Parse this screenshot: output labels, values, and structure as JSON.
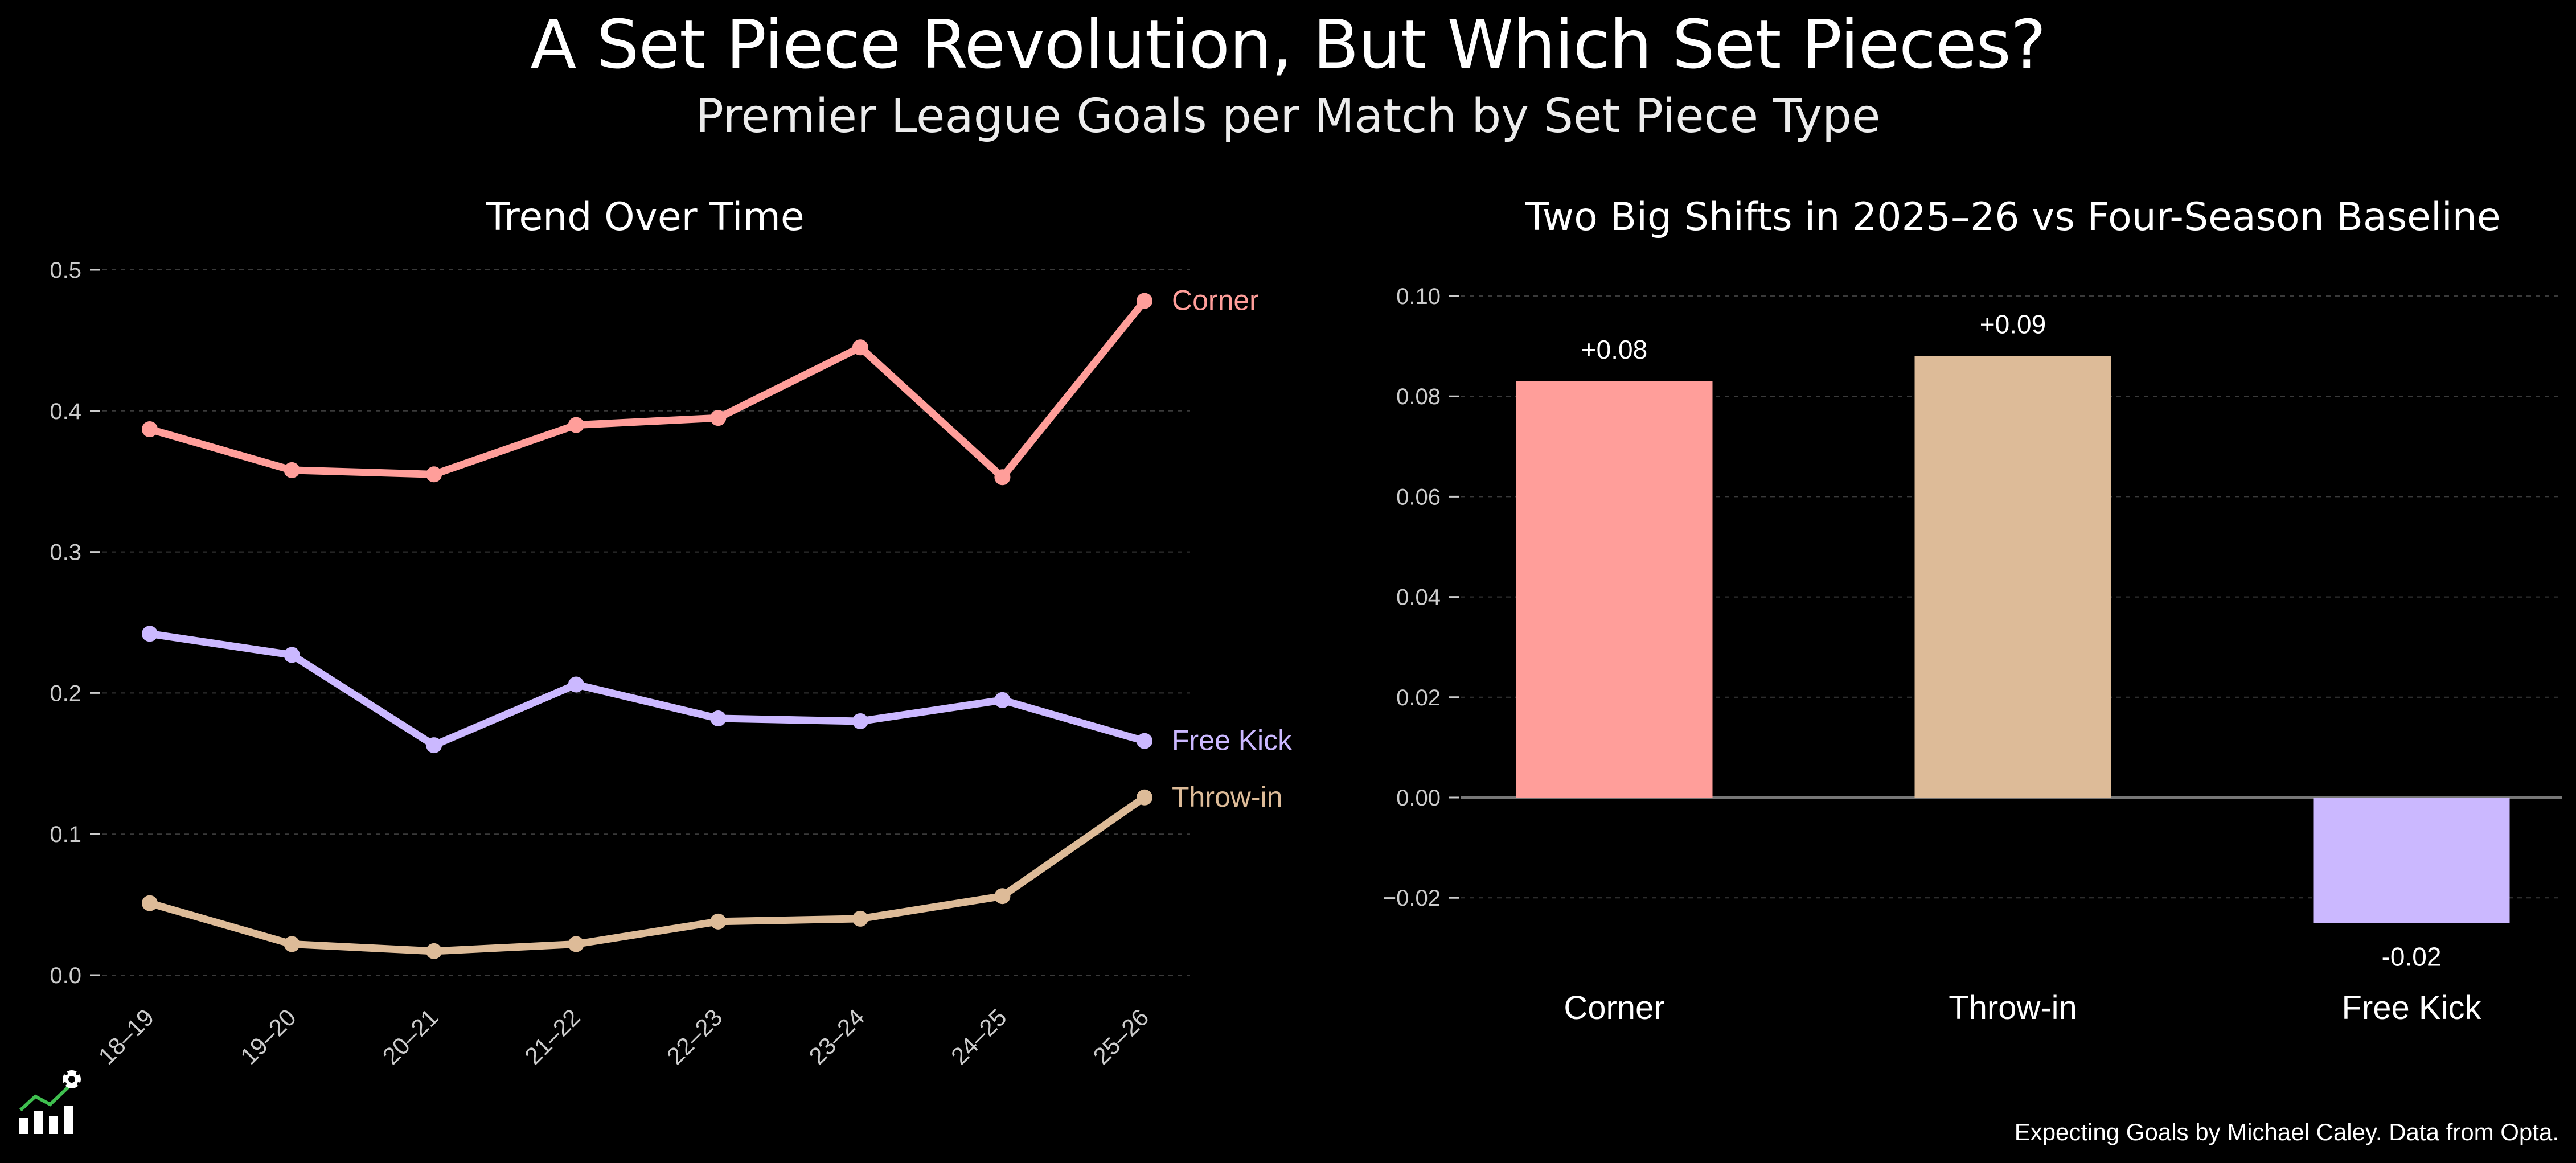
{
  "header": {
    "title": "A Set Piece Revolution, But Which Set Pieces?",
    "subtitle": "Premier League Goals per Match by Set Piece Type"
  },
  "colors": {
    "Corner": "#ff9e9a",
    "Free Kick": "#cbb8ff",
    "Throw-in": "#ddbb98",
    "grid": "#3a3a3a",
    "tick": "#cccccc",
    "zero_line": "#777777"
  },
  "chart_data": [
    {
      "type": "line",
      "title": "Trend Over Time",
      "xlabel": "",
      "ylabel": "",
      "x": [
        "18–19",
        "19–20",
        "20–21",
        "21–22",
        "22–23",
        "23–24",
        "24–25",
        "25–26"
      ],
      "ylim": [
        0,
        0.5
      ],
      "yticks": [
        0.0,
        0.1,
        0.2,
        0.3,
        0.4,
        0.5
      ],
      "ytick_labels": [
        "0.0",
        "0.1",
        "0.2",
        "0.3",
        "0.4",
        "0.5"
      ],
      "grid": true,
      "series": [
        {
          "name": "Corner",
          "label": "Corner",
          "values": [
            0.387,
            0.358,
            0.355,
            0.39,
            0.395,
            0.445,
            0.353,
            0.478
          ]
        },
        {
          "name": "Free Kick",
          "label": "Free Kick",
          "values": [
            0.242,
            0.227,
            0.163,
            0.206,
            0.182,
            0.18,
            0.195,
            0.166
          ]
        },
        {
          "name": "Throw-in",
          "label": "Throw-in",
          "values": [
            0.051,
            0.022,
            0.017,
            0.022,
            0.038,
            0.04,
            0.056,
            0.126
          ]
        }
      ]
    },
    {
      "type": "bar",
      "title": "Two Big Shifts in 2025–26 vs Four-Season Baseline",
      "xlabel": "",
      "ylabel": "",
      "categories": [
        "Corner",
        "Throw-in",
        "Free Kick"
      ],
      "values": [
        0.083,
        0.088,
        -0.025
      ],
      "value_labels": [
        "+0.08",
        "+0.09",
        "-0.02"
      ],
      "ylim": [
        -0.035,
        0.105
      ],
      "yticks": [
        -0.02,
        0.0,
        0.02,
        0.04,
        0.06,
        0.08,
        0.1
      ],
      "ytick_labels": [
        "−0.02",
        "0.00",
        "0.02",
        "0.04",
        "0.06",
        "0.08",
        "0.10"
      ],
      "grid": true
    }
  ],
  "footer": {
    "credit": "Expecting Goals by Michael Caley. Data from Opta."
  },
  "logo": {
    "icon": "chart-with-soccer-ball-icon"
  }
}
